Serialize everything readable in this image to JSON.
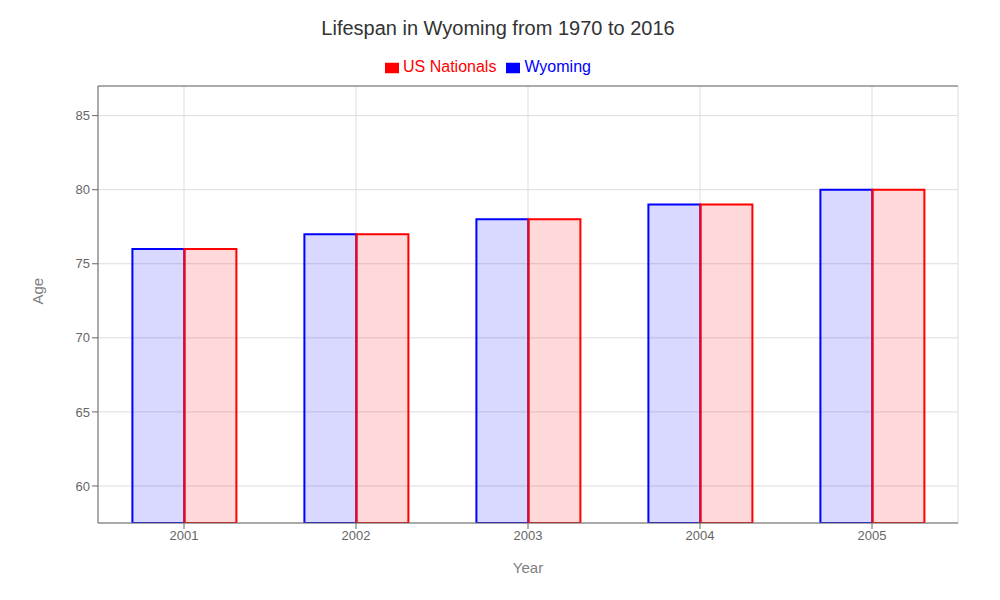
{
  "chart_data": {
    "type": "bar",
    "title": "Lifespan in Wyoming from 1970 to 2016",
    "x_label": "Year",
    "y_label": "Age",
    "categories": [
      "2001",
      "2002",
      "2003",
      "2004",
      "2005"
    ],
    "series": [
      {
        "name": "Wyoming",
        "color": "#0000ff",
        "values": [
          76.0,
          77.0,
          78.0,
          79.0,
          80.0
        ]
      },
      {
        "name": "US Nationals",
        "color": "#ff0000",
        "values": [
          76.0,
          77.0,
          78.0,
          79.0,
          80.0
        ]
      }
    ],
    "ylim": [
      57.5,
      87
    ],
    "yticks": [
      60,
      65,
      70,
      75,
      80,
      85
    ],
    "grid": true,
    "legend": "top"
  }
}
